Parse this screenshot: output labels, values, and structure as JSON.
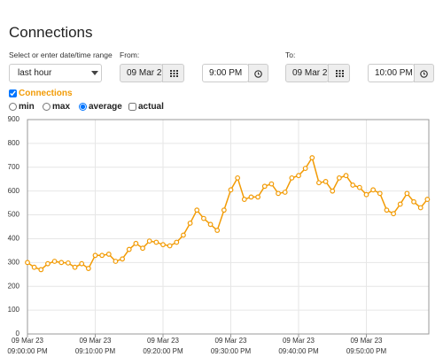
{
  "header": {
    "title": "Connections"
  },
  "controls": {
    "range_label": "Select or enter date/time range",
    "range_select": "last hour",
    "from_label": "From:",
    "from_date": "09 Mar 2",
    "from_time": "9:00 PM",
    "to_label": "To:",
    "to_date": "09 Mar 2",
    "to_time": "10:00 PM",
    "modes": [
      "min",
      "max",
      "average",
      "actual"
    ]
  },
  "chart_data": {
    "type": "line",
    "date_label": "09 Mar 23",
    "categories": [
      "09:00:00 PM",
      null,
      null,
      null,
      null,
      null,
      null,
      null,
      null,
      null,
      "09:10:00 PM",
      null,
      null,
      null,
      null,
      null,
      null,
      null,
      null,
      null,
      "09:20:00 PM",
      null,
      null,
      null,
      null,
      null,
      null,
      null,
      null,
      null,
      "09:30:00 PM",
      null,
      null,
      null,
      null,
      null,
      null,
      null,
      null,
      null,
      "09:40:00 PM",
      null,
      null,
      null,
      null,
      null,
      null,
      null,
      null,
      null,
      "09:50:00 PM",
      null,
      null,
      null,
      null,
      null,
      null,
      null,
      null,
      null
    ],
    "series": [
      {
        "name": "Connections",
        "color": "#f29b05",
        "values": [
          300,
          280,
          270,
          295,
          305,
          300,
          298,
          280,
          295,
          275,
          330,
          330,
          335,
          305,
          315,
          355,
          380,
          360,
          390,
          385,
          375,
          370,
          385,
          415,
          465,
          520,
          485,
          460,
          435,
          520,
          605,
          655,
          565,
          575,
          575,
          620,
          630,
          590,
          595,
          655,
          665,
          695,
          740,
          635,
          640,
          600,
          655,
          665,
          625,
          615,
          585,
          605,
          590,
          520,
          505,
          545,
          590,
          555,
          530,
          565
        ]
      }
    ],
    "ylim": [
      0,
      900
    ],
    "yticks": [
      0,
      100,
      200,
      300,
      400,
      500,
      600,
      700,
      800,
      900
    ],
    "grid": true
  }
}
